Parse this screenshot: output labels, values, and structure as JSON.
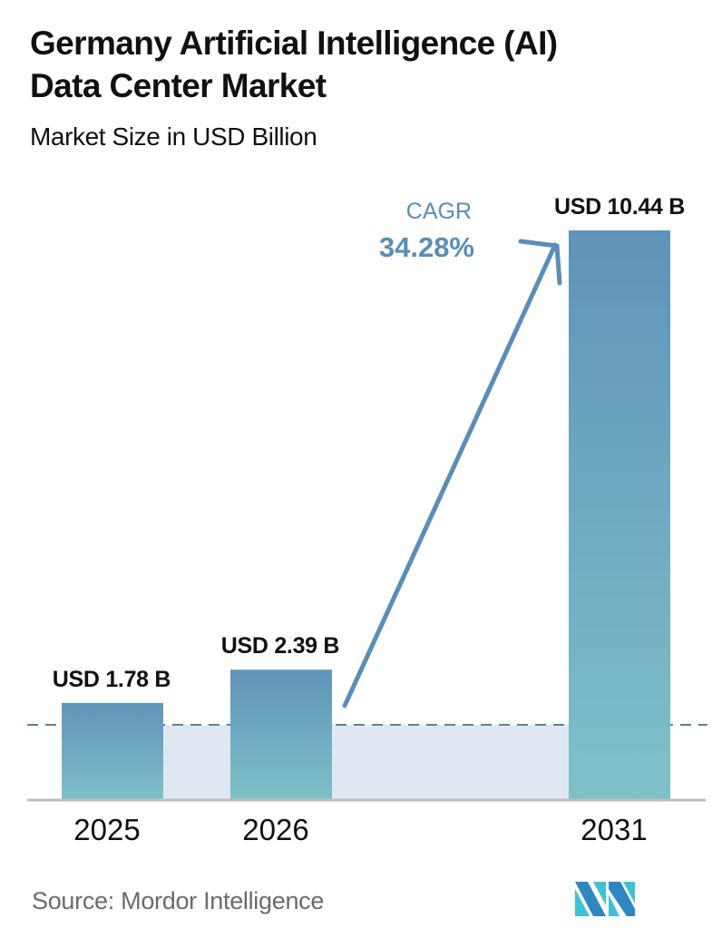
{
  "header": {
    "title_line1": "Germany Artificial Intelligence (AI)",
    "title_line2": "Data Center Market",
    "subtitle": "Market Size in USD Billion"
  },
  "annotation": {
    "cagr_label": "CAGR",
    "cagr_value": "34.28%"
  },
  "footer": {
    "source": "Source:  Mordor Intelligence",
    "logo_icon": "mordor-intelligence-logo-icon"
  },
  "colors": {
    "bar_top": "#5f93b9",
    "bar_bottom": "#7fc1c8",
    "band": "#dfe8f1",
    "accent": "#5a8db8",
    "baseline": "#bdbdbd",
    "logo_dark": "#2f86c0",
    "logo_light": "#3fc1cf"
  },
  "chart_data": {
    "type": "bar",
    "title": "Germany Artificial Intelligence (AI) Data Center Market",
    "subtitle": "Market Size in USD Billion",
    "xlabel": "",
    "ylabel": "Market Size (USD Billion)",
    "categories": [
      "2025",
      "2026",
      "2031"
    ],
    "values": [
      1.78,
      2.39,
      10.44
    ],
    "value_labels": [
      "USD 1.78 B",
      "USD 2.39 B",
      "USD 10.44 B"
    ],
    "unit": "USD Billion",
    "annotations": [
      {
        "type": "arrow",
        "from": "2026",
        "to": "2031",
        "label": "CAGR 34.28%"
      },
      {
        "type": "dashed-reference-line",
        "at_value": 1.78
      }
    ],
    "grid": false,
    "legend": "none",
    "source": "Mordor Intelligence"
  }
}
